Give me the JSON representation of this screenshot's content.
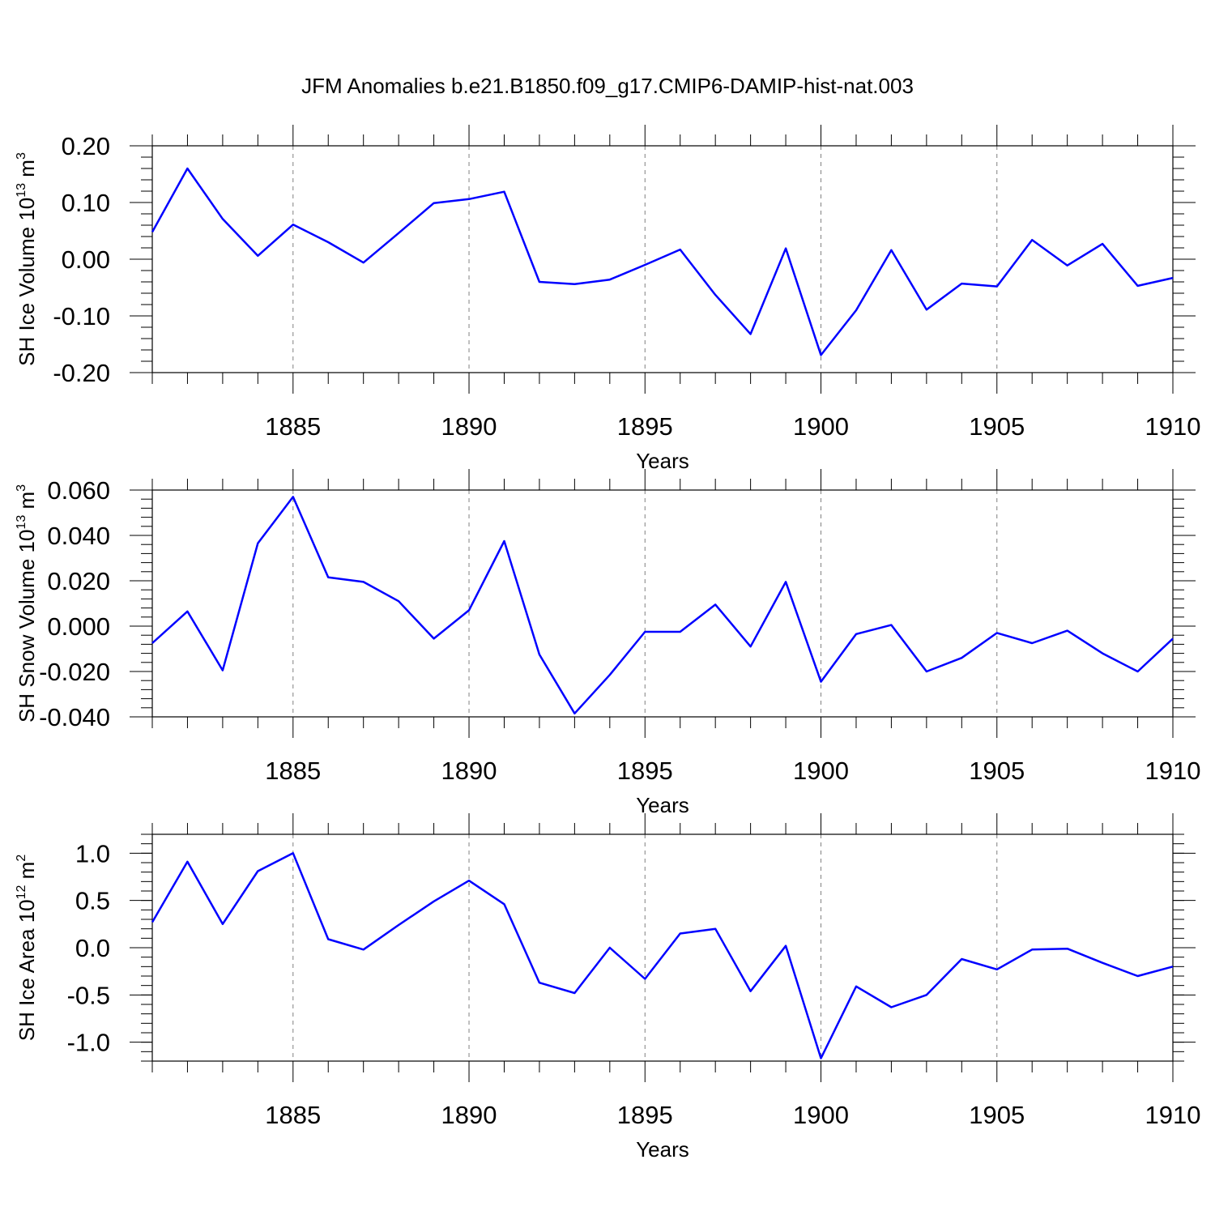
{
  "title": "JFM Anomalies b.e21.B1850.f09_g17.CMIP6-DAMIP-hist-nat.003",
  "colors": {
    "line": "#0000ff",
    "axis": "#000000",
    "grid": "#808080"
  },
  "chart_data": [
    {
      "type": "line",
      "ylabel_main": "SH Ice Volume 10",
      "ylabel_exp": "13",
      "ylabel_unit": " m",
      "ylabel_unit_exp": "3",
      "xlabel": "Years",
      "xlim": [
        1881,
        1910
      ],
      "ylim": [
        -0.2,
        0.2
      ],
      "xticks": [
        "1885",
        "1890",
        "1895",
        "1900",
        "1905",
        "1910"
      ],
      "yticks": [
        "0.20",
        "0.10",
        "0.00",
        "-0.10",
        "-0.20"
      ],
      "ytick_values": [
        0.2,
        0.1,
        0.0,
        -0.1,
        -0.2
      ],
      "x": [
        1881,
        1882,
        1883,
        1884,
        1885,
        1886,
        1887,
        1888,
        1889,
        1890,
        1891,
        1892,
        1893,
        1894,
        1895,
        1896,
        1897,
        1898,
        1899,
        1900,
        1901,
        1902,
        1903,
        1904,
        1905,
        1906,
        1907,
        1908,
        1909,
        1910
      ],
      "values": [
        0.048,
        0.16,
        0.071,
        0.006,
        0.061,
        0.03,
        -0.006,
        0.046,
        0.099,
        0.106,
        0.119,
        -0.04,
        -0.044,
        -0.036,
        -0.01,
        0.017,
        -0.063,
        -0.132,
        0.019,
        -0.169,
        -0.09,
        0.016,
        -0.089,
        -0.043,
        -0.048,
        0.034,
        -0.011,
        0.027,
        -0.047,
        -0.033
      ]
    },
    {
      "type": "line",
      "ylabel_main": "SH Snow Volume 10",
      "ylabel_exp": "13",
      "ylabel_unit": " m",
      "ylabel_unit_exp": "3",
      "xlabel": "Years",
      "xlim": [
        1881,
        1910
      ],
      "ylim": [
        -0.04,
        0.06
      ],
      "xticks": [
        "1885",
        "1890",
        "1895",
        "1900",
        "1905",
        "1910"
      ],
      "yticks": [
        "0.060",
        "0.040",
        "0.020",
        "0.000",
        "-0.020",
        "-0.040"
      ],
      "ytick_values": [
        0.06,
        0.04,
        0.02,
        0.0,
        -0.02,
        -0.04
      ],
      "x": [
        1881,
        1882,
        1883,
        1884,
        1885,
        1886,
        1887,
        1888,
        1889,
        1890,
        1891,
        1892,
        1893,
        1894,
        1895,
        1896,
        1897,
        1898,
        1899,
        1900,
        1901,
        1902,
        1903,
        1904,
        1905,
        1906,
        1907,
        1908,
        1909,
        1910
      ],
      "values": [
        -0.0075,
        0.0065,
        -0.0195,
        0.0365,
        0.057,
        0.0215,
        0.0195,
        0.011,
        -0.0055,
        0.007,
        0.0375,
        -0.0125,
        -0.0385,
        -0.0215,
        -0.0025,
        -0.0025,
        0.0095,
        -0.009,
        0.0195,
        -0.0245,
        -0.0035,
        0.0005,
        -0.02,
        -0.014,
        -0.003,
        -0.0075,
        -0.002,
        -0.012,
        -0.02,
        -0.0055
      ]
    },
    {
      "type": "line",
      "ylabel_main": "SH Ice Area 10",
      "ylabel_exp": "12",
      "ylabel_unit": " m",
      "ylabel_unit_exp": "2",
      "xlabel": "Years",
      "xlim": [
        1881,
        1910
      ],
      "ylim": [
        -1.2,
        1.2
      ],
      "xticks": [
        "1885",
        "1890",
        "1895",
        "1900",
        "1905",
        "1910"
      ],
      "yticks": [
        "1.0",
        "0.5",
        "0.0",
        "-0.5",
        "-1.0"
      ],
      "ytick_values": [
        1.0,
        0.5,
        0.0,
        -0.5,
        -1.0
      ],
      "x": [
        1881,
        1882,
        1883,
        1884,
        1885,
        1886,
        1887,
        1888,
        1889,
        1890,
        1891,
        1892,
        1893,
        1894,
        1895,
        1896,
        1897,
        1898,
        1899,
        1900,
        1901,
        1902,
        1903,
        1904,
        1905,
        1906,
        1907,
        1908,
        1909,
        1910
      ],
      "values": [
        0.27,
        0.91,
        0.25,
        0.81,
        1.0,
        0.09,
        -0.02,
        0.24,
        0.49,
        0.71,
        0.46,
        -0.37,
        -0.48,
        0.0,
        -0.33,
        0.15,
        0.2,
        -0.46,
        0.02,
        -1.17,
        -0.41,
        -0.63,
        -0.5,
        -0.12,
        -0.23,
        -0.02,
        -0.01,
        -0.16,
        -0.3,
        -0.2
      ]
    }
  ]
}
